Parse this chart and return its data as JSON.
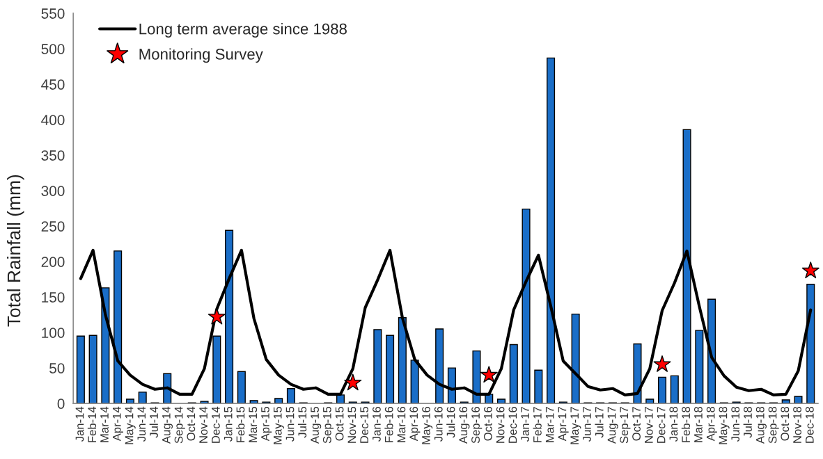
{
  "chart_data": {
    "type": "bar",
    "ylabel": "Total Rainfall (mm)",
    "categories": [
      "Jan-14",
      "Feb-14",
      "Mar-14",
      "Apr-14",
      "May-14",
      "Jun-14",
      "Jul-14",
      "Aug-14",
      "Sep-14",
      "Oct-14",
      "Nov-14",
      "Dec-14",
      "Jan-15",
      "Feb-15",
      "Mar-15",
      "Apr-15",
      "May-15",
      "Jun-15",
      "Jul-15",
      "Aug-15",
      "Sep-15",
      "Oct-15",
      "Nov-15",
      "Dec-15",
      "Jan-16",
      "Feb-16",
      "Mar-16",
      "Apr-16",
      "May-16",
      "Jun-16",
      "Jul-16",
      "Aug-16",
      "Sep-16",
      "Oct-16",
      "Nov-16",
      "Dec-16",
      "Jan-17",
      "Feb-17",
      "Mar-17",
      "Apr-17",
      "May-17",
      "Jun-17",
      "Jul-17",
      "Aug-17",
      "Sep-17",
      "Oct-17",
      "Nov-17",
      "Dec-17",
      "Jan-18",
      "Feb-18",
      "Mar-18",
      "Apr-18",
      "May-18",
      "Jun-18",
      "Jul-18",
      "Aug-18",
      "Sep-18",
      "Oct-18",
      "Nov-18",
      "Dec-18"
    ],
    "series": [
      {
        "color": "#1a6ec8",
        "values": [
          95,
          96,
          163,
          215,
          6,
          16,
          1,
          42,
          null,
          1,
          3,
          95,
          244,
          45,
          4,
          2,
          7,
          21,
          1,
          null,
          1,
          12,
          2,
          2,
          104,
          96,
          121,
          61,
          null,
          105,
          50,
          2,
          74,
          13,
          6,
          83,
          274,
          47,
          487,
          2,
          126,
          1,
          1,
          1,
          1,
          84,
          6,
          37,
          39,
          386,
          103,
          147,
          1,
          2,
          1,
          1,
          1,
          5,
          10,
          168
        ]
      },
      {
        "type": "line",
        "name": "Long term average since 1988",
        "color": "#000000",
        "line_style": "solid",
        "values": [
          176,
          216,
          125,
          60,
          40,
          27,
          20,
          22,
          13,
          13,
          49,
          133,
          176,
          216,
          120,
          62,
          40,
          27,
          20,
          22,
          13,
          13,
          49,
          135,
          174,
          216,
          121,
          62,
          40,
          27,
          20,
          22,
          13,
          13,
          49,
          132,
          172,
          209,
          137,
          60,
          42,
          24,
          19,
          21,
          12,
          14,
          49,
          131,
          170,
          215,
          137,
          65,
          39,
          23,
          18,
          20,
          12,
          13,
          46,
          132
        ]
      },
      {
        "type": "scatter",
        "name": "Monitoring Survey",
        "color": "#ff0000",
        "marker": "star",
        "x": [
          "Dec-14",
          "Nov-15",
          "Oct-16",
          "Dec-17",
          "Dec-18"
        ],
        "values": [
          122,
          29,
          40,
          55,
          187
        ]
      }
    ],
    "ylim": [
      0,
      550
    ],
    "yticks": [
      0,
      50,
      100,
      150,
      200,
      250,
      300,
      350,
      400,
      450,
      500,
      550
    ],
    "legend": "top left"
  }
}
